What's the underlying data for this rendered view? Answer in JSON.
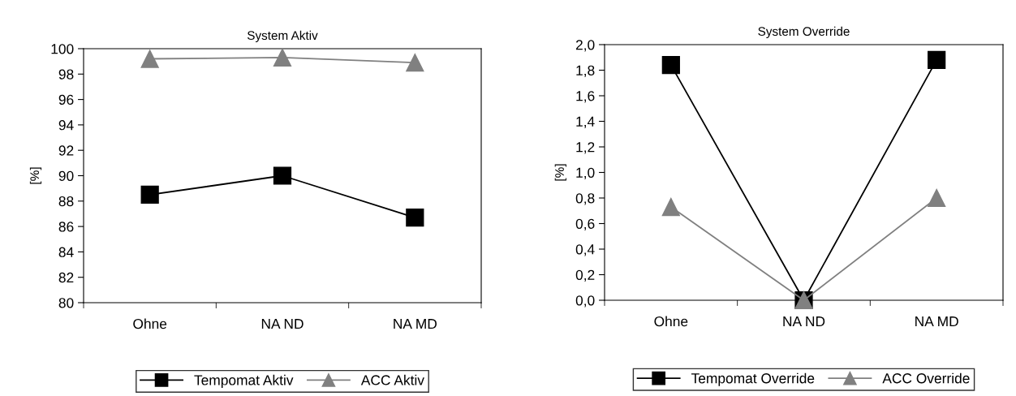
{
  "chart_data": [
    {
      "type": "line",
      "title": "System Aktiv",
      "ylabel": "[%]",
      "categories": [
        "Ohne",
        "NA ND",
        "NA MD"
      ],
      "series": [
        {
          "name": "Tempomat Aktiv",
          "color": "#000000",
          "marker": "square",
          "values": [
            88.5,
            90.0,
            86.7
          ]
        },
        {
          "name": "ACC Aktiv",
          "color": "#808080",
          "marker": "triangle",
          "values": [
            99.2,
            99.3,
            98.9
          ]
        }
      ],
      "ylim": [
        80,
        100
      ],
      "yticks": [
        80,
        82,
        84,
        86,
        88,
        90,
        92,
        94,
        96,
        98,
        100
      ],
      "grid": false,
      "legend": "bottom",
      "line_style": "solid"
    },
    {
      "type": "line",
      "title": "System Override",
      "ylabel": "[%]",
      "categories": [
        "Ohne",
        "NA ND",
        "NA MD"
      ],
      "series": [
        {
          "name": "Tempomat Override",
          "color": "#000000",
          "marker": "square",
          "values": [
            1.84,
            0.0,
            1.88
          ]
        },
        {
          "name": "ACC Override",
          "color": "#808080",
          "marker": "triangle",
          "values": [
            0.73,
            0.0,
            0.8
          ]
        }
      ],
      "ylim": [
        0,
        2
      ],
      "yticks": [
        {
          "value": 0,
          "label": "0,0"
        },
        {
          "value": 0.2,
          "label": "0,2"
        },
        {
          "value": 0.4,
          "label": "0,4"
        },
        {
          "value": 0.6,
          "label": "0,6"
        },
        {
          "value": 0.8,
          "label": "0,8"
        },
        {
          "value": 1.0,
          "label": "1,0"
        },
        {
          "value": 1.2,
          "label": "1,2"
        },
        {
          "value": 1.4,
          "label": "1,4"
        },
        {
          "value": 1.6,
          "label": "1,6"
        },
        {
          "value": 1.8,
          "label": "1,8"
        },
        {
          "value": 2.0,
          "label": "2,0"
        }
      ],
      "grid": false,
      "legend": "bottom",
      "line_style": "solid"
    }
  ]
}
